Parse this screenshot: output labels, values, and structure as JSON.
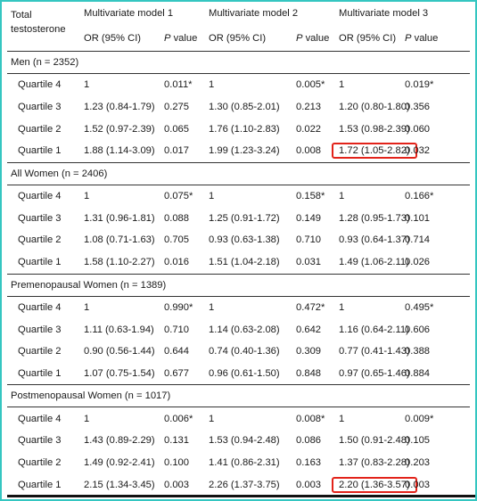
{
  "header": {
    "first_col": "Total testosterone",
    "models": [
      "Multivariate model 1",
      "Multivariate model 2",
      "Multivariate model 3"
    ],
    "or_label": "OR (95% CI)",
    "p_label_italic": "P",
    "p_label_rest": " value"
  },
  "sections": [
    {
      "title": "Men (n = 2352)",
      "rows": [
        {
          "label": "Quartile 4",
          "m1_or": "1",
          "m1_p": "0.011*",
          "m2_or": "1",
          "m2_p": "0.005*",
          "m3_or": "1",
          "m3_p": "0.019*"
        },
        {
          "label": "Quartile 3",
          "m1_or": "1.23 (0.84-1.79)",
          "m1_p": "0.275",
          "m2_or": "1.30 (0.85-2.01)",
          "m2_p": "0.213",
          "m3_or": "1.20 (0.80-1.80)",
          "m3_p": "0.356"
        },
        {
          "label": "Quartile 2",
          "m1_or": "1.52 (0.97-2.39)",
          "m1_p": "0.065",
          "m2_or": "1.76 (1.10-2.83)",
          "m2_p": "0.022",
          "m3_or": "1.53 (0.98-2.39)",
          "m3_p": "0.060"
        },
        {
          "label": "Quartile 1",
          "m1_or": "1.88 (1.14-3.09)",
          "m1_p": "0.017",
          "m2_or": "1.99 (1.23-3.24)",
          "m2_p": "0.008",
          "m3_or": "1.72 (1.05-2.82)",
          "m3_p": "0.032"
        }
      ]
    },
    {
      "title": "All Women (n = 2406)",
      "rows": [
        {
          "label": "Quartile 4",
          "m1_or": "1",
          "m1_p": "0.075*",
          "m2_or": "1",
          "m2_p": "0.158*",
          "m3_or": "1",
          "m3_p": "0.166*"
        },
        {
          "label": "Quartile 3",
          "m1_or": "1.31 (0.96-1.81)",
          "m1_p": "0.088",
          "m2_or": "1.25 (0.91-1.72)",
          "m2_p": "0.149",
          "m3_or": "1.28 (0.95-1.73)",
          "m3_p": "0.101"
        },
        {
          "label": "Quartile 2",
          "m1_or": "1.08 (0.71-1.63)",
          "m1_p": "0.705",
          "m2_or": "0.93 (0.63-1.38)",
          "m2_p": "0.710",
          "m3_or": "0.93 (0.64-1.37)",
          "m3_p": "0.714"
        },
        {
          "label": "Quartile 1",
          "m1_or": "1.58 (1.10-2.27)",
          "m1_p": "0.016",
          "m2_or": "1.51 (1.04-2.18)",
          "m2_p": "0.031",
          "m3_or": "1.49 (1.06-2.11)",
          "m3_p": "0.026"
        }
      ]
    },
    {
      "title": "Premenopausal Women (n = 1389)",
      "rows": [
        {
          "label": "Quartile 4",
          "m1_or": "1",
          "m1_p": "0.990*",
          "m2_or": "1",
          "m2_p": "0.472*",
          "m3_or": "1",
          "m3_p": "0.495*"
        },
        {
          "label": "Quartile 3",
          "m1_or": "1.11 (0.63-1.94)",
          "m1_p": "0.710",
          "m2_or": "1.14 (0.63-2.08)",
          "m2_p": "0.642",
          "m3_or": "1.16 (0.64-2.11)",
          "m3_p": "0.606"
        },
        {
          "label": "Quartile 2",
          "m1_or": "0.90 (0.56-1.44)",
          "m1_p": "0.644",
          "m2_or": "0.74 (0.40-1.36)",
          "m2_p": "0.309",
          "m3_or": "0.77 (0.41-1.43)",
          "m3_p": "0.388"
        },
        {
          "label": "Quartile 1",
          "m1_or": "1.07 (0.75-1.54)",
          "m1_p": "0.677",
          "m2_or": "0.96 (0.61-1.50)",
          "m2_p": "0.848",
          "m3_or": "0.97 (0.65-1.46)",
          "m3_p": "0.884"
        }
      ]
    },
    {
      "title": "Postmenopausal Women (n = 1017)",
      "rows": [
        {
          "label": "Quartile 4",
          "m1_or": "1",
          "m1_p": "0.006*",
          "m2_or": "1",
          "m2_p": "0.008*",
          "m3_or": "1",
          "m3_p": "0.009*"
        },
        {
          "label": "Quartile 3",
          "m1_or": "1.43 (0.89-2.29)",
          "m1_p": "0.131",
          "m2_or": "1.53 (0.94-2.48)",
          "m2_p": "0.086",
          "m3_or": "1.50 (0.91-2.48)",
          "m3_p": "0.105"
        },
        {
          "label": "Quartile 2",
          "m1_or": "1.49 (0.92-2.41)",
          "m1_p": "0.100",
          "m2_or": "1.41 (0.86-2.31)",
          "m2_p": "0.163",
          "m3_or": "1.37 (0.83-2.28)",
          "m3_p": "0.203"
        },
        {
          "label": "Quartile 1",
          "m1_or": "2.15 (1.34-3.45)",
          "m1_p": "0.003",
          "m2_or": "2.26 (1.37-3.75)",
          "m2_p": "0.003",
          "m3_or": "2.20 (1.36-3.57)",
          "m3_p": "0.003"
        }
      ]
    }
  ],
  "highlight_color": "#e2231a",
  "frame_color": "#35c6c1"
}
